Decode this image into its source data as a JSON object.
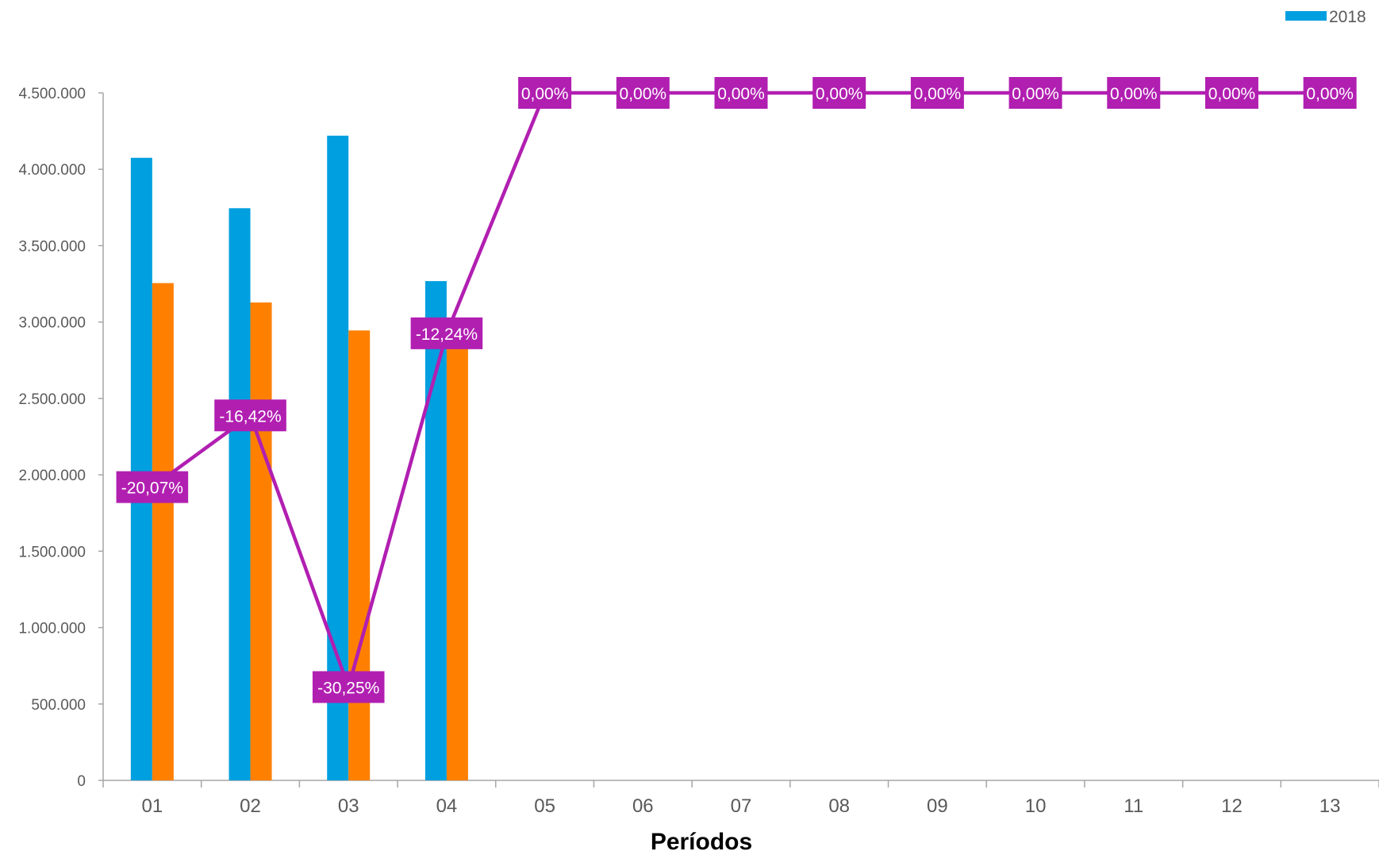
{
  "chart_data": {
    "type": "bar",
    "categories": [
      "01",
      "02",
      "03",
      "04",
      "05",
      "06",
      "07",
      "08",
      "09",
      "10",
      "11",
      "12",
      "13"
    ],
    "series": [
      {
        "name": "2018",
        "kind": "bar",
        "color": "#009fdf",
        "values": [
          4075000,
          3745000,
          4220000,
          3268000,
          null,
          null,
          null,
          null,
          null,
          null,
          null,
          null,
          null
        ]
      },
      {
        "name": "",
        "kind": "bar",
        "color": "#ff8000",
        "values": [
          3255000,
          3128000,
          2945000,
          2870000,
          null,
          null,
          null,
          null,
          null,
          null,
          null,
          null,
          null
        ]
      },
      {
        "name": "",
        "kind": "line",
        "color": "#b11fb1",
        "values": [
          -20.07,
          -16.42,
          -30.25,
          -12.24,
          0,
          0,
          0,
          0,
          0,
          0,
          0,
          0,
          0
        ],
        "labels": [
          "-20,07%",
          "-16,42%",
          "-30,25%",
          "-12,24%",
          "0,00%",
          "0,00%",
          "0,00%",
          "0,00%",
          "0,00%",
          "0,00%",
          "0,00%",
          "0,00%",
          "0,00%"
        ]
      }
    ],
    "y_ticks": [
      "0",
      "500.000",
      "1.000.000",
      "1.500.000",
      "2.000.000",
      "2.500.000",
      "3.000.000",
      "3.500.000",
      "4.000.000",
      "4.500.000"
    ],
    "ylim": [
      0,
      4500000
    ],
    "secondary_ylim": [
      -35,
      0
    ],
    "xlabel": "Períodos",
    "ylabel": "",
    "title": "",
    "grid": false,
    "legend": {
      "position": "top-right",
      "entries": [
        "2018"
      ]
    }
  }
}
